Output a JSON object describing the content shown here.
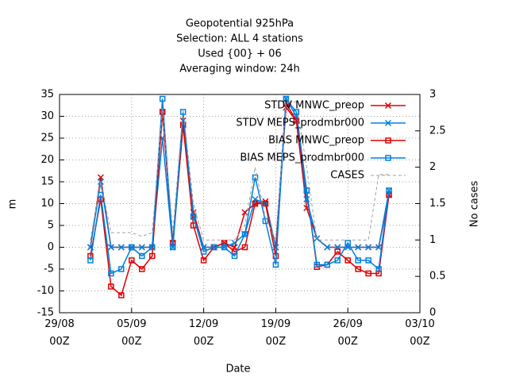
{
  "chart_data": {
    "type": "line",
    "title": [
      "Geopotential 925hPa",
      "Selection: ALL      4 stations",
      "Used {00} + 06",
      "Averaging window: 24h"
    ],
    "xlabel": "Date",
    "ylabel": "m",
    "y2label": "No cases",
    "x": [
      "01/09",
      "02/09",
      "03/09",
      "04/09",
      "05/09",
      "06/09",
      "07/09",
      "08/09",
      "09/09",
      "10/09",
      "11/09",
      "12/09",
      "13/09",
      "14/09",
      "15/09",
      "16/09",
      "17/09",
      "18/09",
      "19/09",
      "20/09",
      "21/09",
      "22/09",
      "23/09",
      "24/09",
      "25/09",
      "26/09",
      "27/09",
      "28/09",
      "29/09",
      "30/09"
    ],
    "xlim": [
      "29/08",
      "03/10"
    ],
    "xticks": [
      {
        "value": "29/08",
        "label": "29/08\n00Z"
      },
      {
        "value": "05/09",
        "label": "05/09\n00Z"
      },
      {
        "value": "12/09",
        "label": "12/09\n00Z"
      },
      {
        "value": "19/09",
        "label": "19/09\n00Z"
      },
      {
        "value": "26/09",
        "label": "26/09\n00Z"
      },
      {
        "value": "03/10",
        "label": "03/10\n00Z"
      }
    ],
    "ylim": [
      -15,
      35
    ],
    "yticks": [
      -15,
      -10,
      -5,
      0,
      5,
      10,
      15,
      20,
      25,
      30,
      35
    ],
    "y2lim": [
      0,
      3
    ],
    "y2ticks": [
      0,
      0.5,
      1,
      1.5,
      2,
      2.5,
      3
    ],
    "grid": true,
    "legend": "top-right",
    "series": [
      {
        "name": "STDV MNWC_preop",
        "color": "#e00000",
        "marker": "x",
        "values": [
          0,
          16,
          0,
          0,
          0,
          0,
          0,
          31,
          1,
          29,
          8,
          0,
          0,
          1,
          0,
          8,
          10,
          10.5,
          0,
          32,
          29,
          9,
          2,
          0,
          0,
          0,
          0,
          0,
          0,
          12
        ]
      },
      {
        "name": "STDV MEPS_prodmbr000",
        "color": "#0080e0",
        "marker": "x",
        "values": [
          0,
          15,
          0,
          0,
          0,
          0,
          0,
          25,
          0,
          28,
          7,
          0,
          0,
          0,
          1,
          3,
          11,
          10,
          0,
          34,
          30,
          11,
          2,
          0,
          0,
          0,
          0,
          0,
          0,
          13
        ]
      },
      {
        "name": "BIAS MNWC_preop",
        "color": "#e00000",
        "marker": "square",
        "values": [
          -2,
          11,
          -9,
          -11,
          -3,
          -5,
          -2,
          31,
          1,
          28,
          5,
          -3,
          0,
          1,
          -1,
          0,
          10,
          10,
          -2,
          33,
          29,
          13,
          -4.5,
          -4,
          -1,
          -3,
          -5,
          -6,
          -6,
          12
        ]
      },
      {
        "name": "BIAS MEPS_prodmbr000",
        "color": "#0080e0",
        "marker": "square",
        "values": [
          -3,
          12,
          -6,
          -5,
          0,
          -2,
          0,
          34,
          0,
          31,
          7,
          -1,
          0,
          0,
          -2,
          3,
          16,
          6,
          -4,
          34,
          31,
          13,
          -4,
          -4,
          -3,
          1,
          -3,
          -3,
          -5,
          13
        ]
      },
      {
        "name": "CASES",
        "color": "#a0a0a0",
        "dash": true,
        "axis": "y2",
        "values": [
          1,
          1.8,
          1.1,
          1.1,
          1.1,
          1.05,
          1.1,
          2.8,
          1.1,
          2.8,
          1.5,
          1,
          1,
          1,
          1,
          1.2,
          2,
          1.3,
          1,
          2.9,
          2.9,
          2,
          1,
          1,
          1,
          1,
          1,
          1,
          1.9,
          1.9
        ]
      }
    ]
  }
}
